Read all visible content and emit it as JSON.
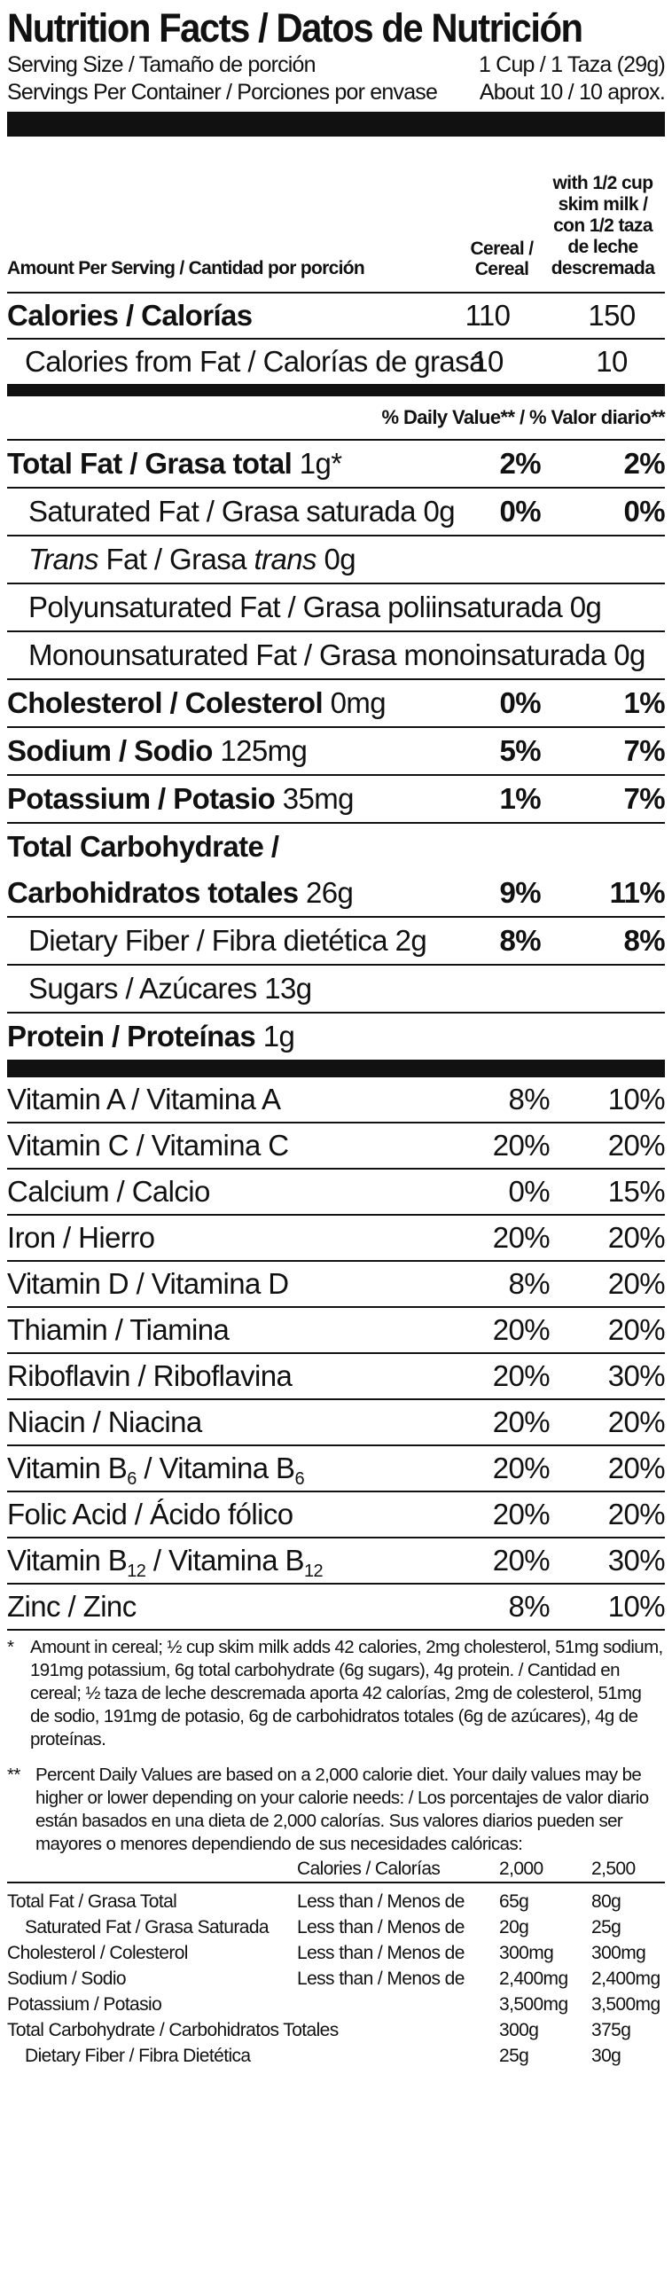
{
  "title": "Nutrition Facts / Datos de Nutrición",
  "serving_size": {
    "label": "Serving Size / Tamaño de porción",
    "value": "1 Cup / 1 Taza (29g)"
  },
  "servings_per_container": {
    "label": "Servings Per Container / Porciones por envase",
    "value": "About 10 / 10 aprox."
  },
  "header": {
    "amount_per_serving": "Amount Per Serving / Cantidad por porción",
    "col_cereal": "Cereal / Cereal",
    "col_milk": "with 1/2 cup skim milk / con 1/2 taza de leche descremada"
  },
  "calories": {
    "label": "Calories / Calorías",
    "cereal": "110",
    "milk": "150"
  },
  "calories_fat": {
    "label": "Calories from Fat / Calorías de grasa",
    "cereal": "10",
    "milk": "10"
  },
  "dv_header": "% Daily Value** / % Valor diario**",
  "nutrients": [
    {
      "name": "Total Fat / Grasa total",
      "amount": "1g*",
      "p1": "2%",
      "p2": "2%"
    },
    {
      "name": "Saturated Fat / Grasa saturada",
      "amount": "0g",
      "p1": "0%",
      "p2": "0%"
    },
    {
      "name": "Trans Fat / Grasa trans",
      "amount": "0g"
    },
    {
      "name": "Polyunsaturated Fat / Grasa poliinsaturada",
      "amount": "0g"
    },
    {
      "name": "Monounsaturated Fat / Grasa monoinsaturada",
      "amount": "0g"
    },
    {
      "name": "Cholesterol / Colesterol",
      "amount": "0mg",
      "p1": "0%",
      "p2": "1%"
    },
    {
      "name": "Sodium / Sodio",
      "amount": "125mg",
      "p1": "5%",
      "p2": "7%"
    },
    {
      "name": "Potassium / Potasio",
      "amount": "35mg",
      "p1": "1%",
      "p2": "7%"
    },
    {
      "name_line1": "Total Carbohydrate /",
      "name": "Carbohidratos totales",
      "amount": "26g",
      "p1": "9%",
      "p2": "11%"
    },
    {
      "name": "Dietary Fiber / Fibra dietética",
      "amount": "2g",
      "p1": "8%",
      "p2": "8%"
    },
    {
      "name": "Sugars / Azúcares",
      "amount": "13g"
    },
    {
      "name": "Protein / Proteínas",
      "amount": "1g"
    }
  ],
  "vitamins": [
    {
      "name": "Vitamin A / Vitamina A",
      "p1": "8%",
      "p2": "10%"
    },
    {
      "name": "Vitamin C / Vitamina C",
      "p1": "20%",
      "p2": "20%"
    },
    {
      "name": "Calcium / Calcio",
      "p1": "0%",
      "p2": "15%"
    },
    {
      "name": "Iron / Hierro",
      "p1": "20%",
      "p2": "20%"
    },
    {
      "name": "Vitamin D / Vitamina D",
      "p1": "8%",
      "p2": "20%"
    },
    {
      "name": "Thiamin / Tiamina",
      "p1": "20%",
      "p2": "20%"
    },
    {
      "name": "Riboflavin / Riboflavina",
      "p1": "20%",
      "p2": "30%"
    },
    {
      "name": "Niacin / Niacina",
      "p1": "20%",
      "p2": "20%"
    },
    {
      "name_a": "Vitamin B",
      "sub_a": "6",
      "name_b": " / Vitamina B",
      "sub_b": "6",
      "p1": "20%",
      "p2": "20%"
    },
    {
      "name": "Folic Acid / Ácido fólico",
      "p1": "20%",
      "p2": "20%"
    },
    {
      "name_a": "Vitamin B",
      "sub_a": "12",
      "name_b": " / Vitamina B",
      "sub_b": "12",
      "p1": "20%",
      "p2": "30%"
    },
    {
      "name": "Zinc / Zinc",
      "p1": "8%",
      "p2": "10%"
    }
  ],
  "footnote1": {
    "mark": "*",
    "text": "Amount in cereal; ½ cup skim milk adds 42 calories, 2mg cholesterol, 51mg sodium, 191mg potassium, 6g total carbohydrate (6g sugars), 4g protein. / Cantidad en cereal; ½ taza de leche descremada aporta 42 calorías, 2mg de colesterol, 51mg de sodio, 191mg de potasio, 6g de carbohidratos totales (6g de azúcares), 4g de proteínas."
  },
  "footnote2": {
    "mark": "**",
    "text": "Percent Daily Values are based on a 2,000 calorie diet. Your daily values may be higher or lower depending on your calorie needs: / Los porcentajes de valor diario están basados en una dieta de 2,000 calorías. Sus valores diarios pueden ser mayores o menores dependiendo de sus necesidades calóricas:"
  },
  "dv_table": {
    "header": {
      "calories": "Calories / Calorías",
      "a": "2,000",
      "b": "2,500"
    },
    "rows": [
      {
        "name": "Total Fat / Grasa Total",
        "limit": "Less than / Menos de",
        "a": "65g",
        "b": "80g"
      },
      {
        "name": "Saturated Fat / Grasa Saturada",
        "limit": "Less than / Menos de",
        "a": "20g",
        "b": "25g"
      },
      {
        "name": "Cholesterol / Colesterol",
        "limit": "Less than / Menos de",
        "a": "300mg",
        "b": "300mg"
      },
      {
        "name": "Sodium / Sodio",
        "limit": "Less than / Menos de",
        "a": "2,400mg",
        "b": "2,400mg"
      },
      {
        "name": "Potassium / Potasio",
        "limit": "",
        "a": "3,500mg",
        "b": "3,500mg"
      },
      {
        "name": "Total Carbohydrate / Carbohidratos Totales",
        "limit": "",
        "a": "300g",
        "b": "375g"
      },
      {
        "name": "Dietary Fiber / Fibra Dietética",
        "limit": "",
        "a": "25g",
        "b": "30g"
      }
    ]
  }
}
